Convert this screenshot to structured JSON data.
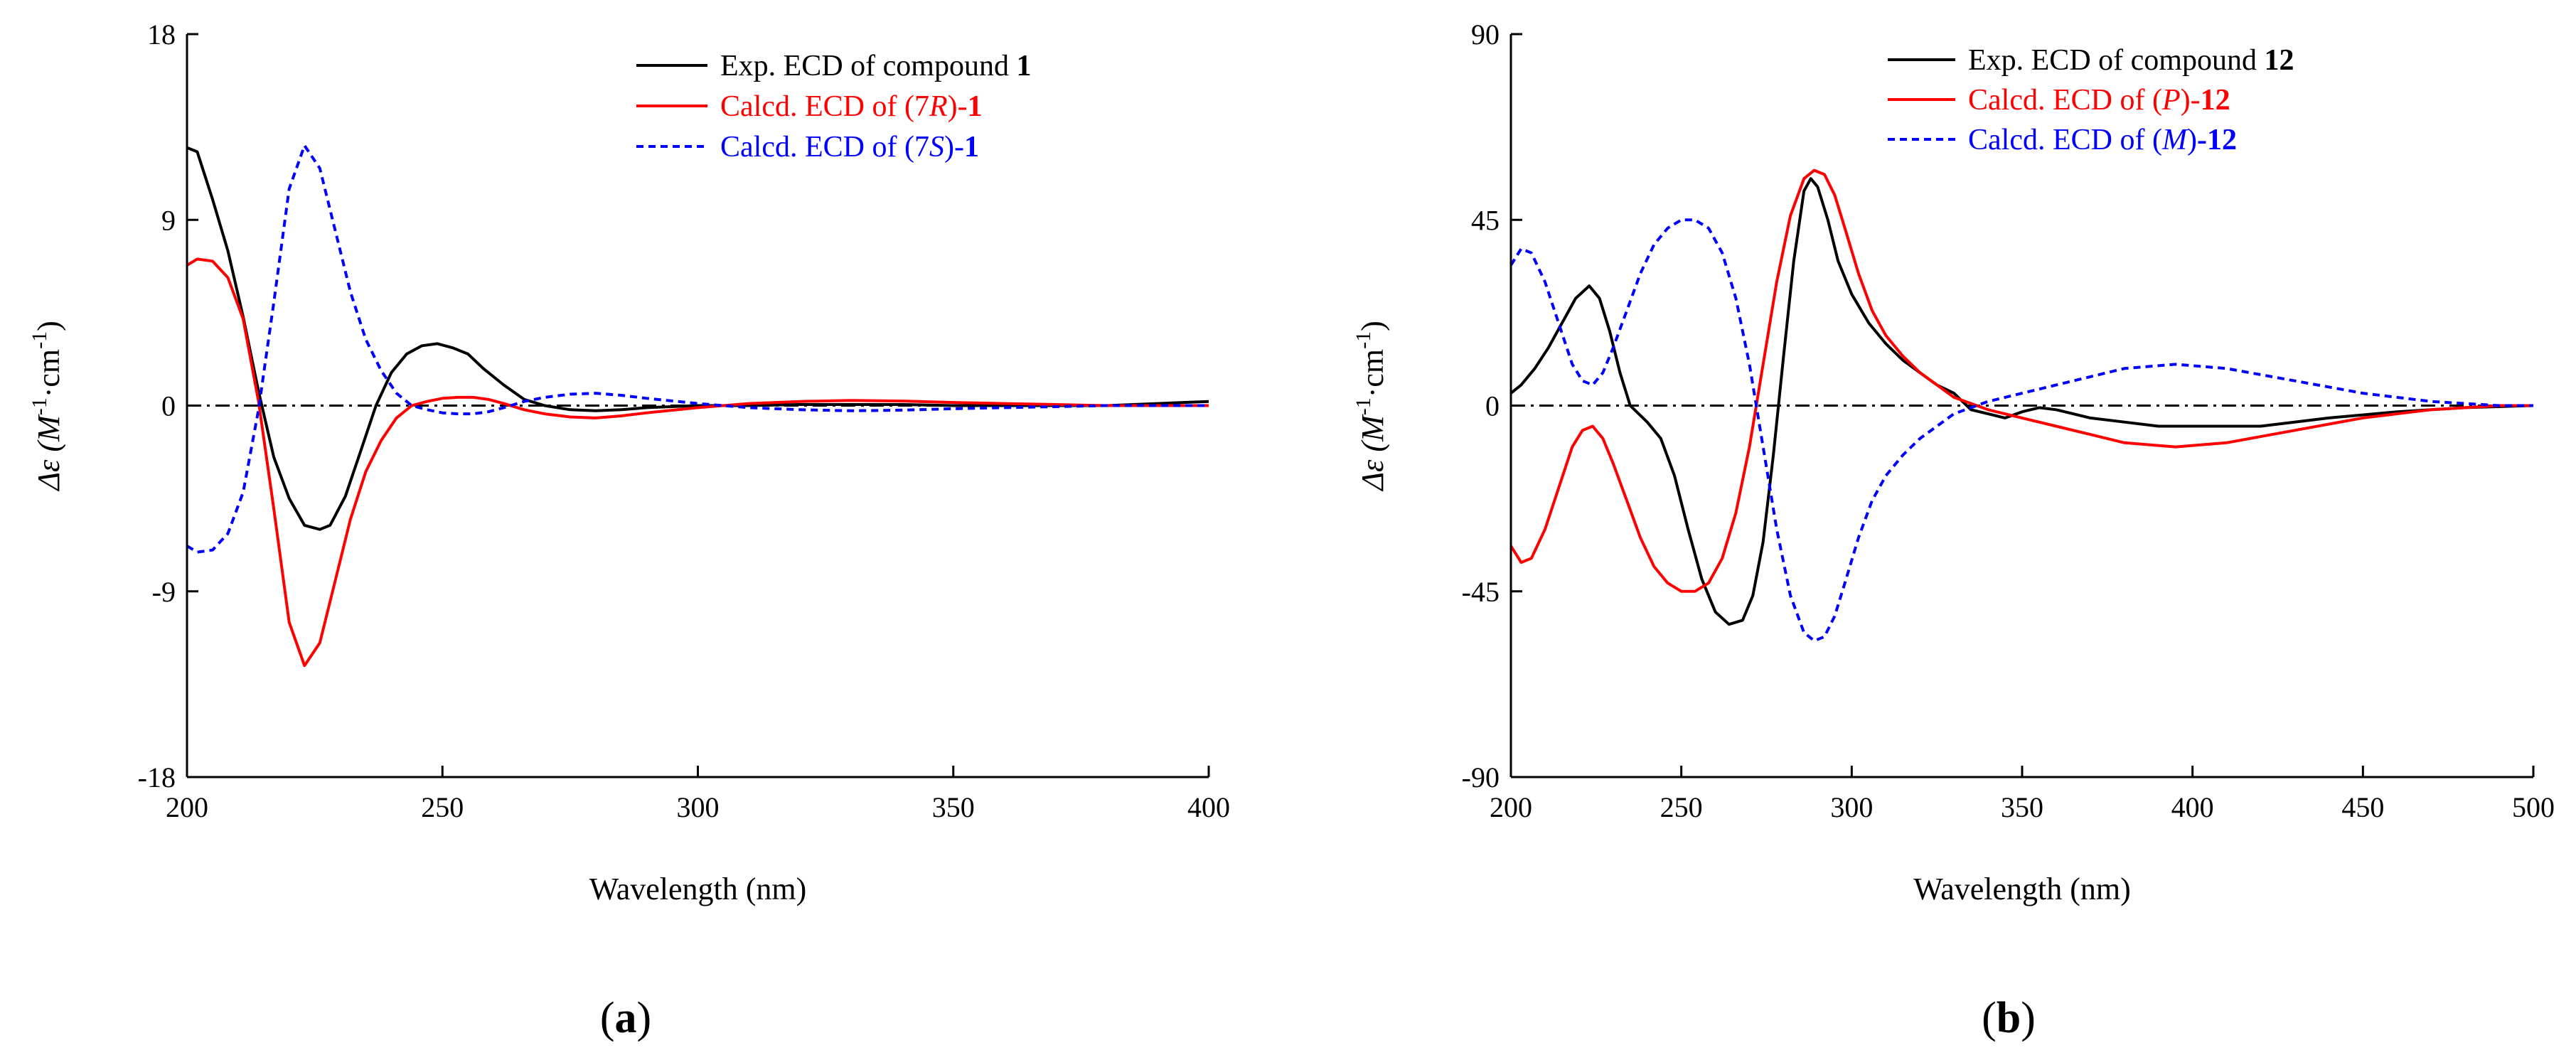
{
  "chart_data": [
    {
      "type": "line",
      "panel_label": "(a)",
      "xlabel": "Wavelength (nm)",
      "ylabel_prefix": "Δε (M",
      "ylabel_sup1": "-1",
      "ylabel_mid": "·cm",
      "ylabel_sup2": "-1",
      "ylabel_suffix": ")",
      "xlim": [
        200,
        400
      ],
      "ylim": [
        -18,
        18
      ],
      "xticks": [
        200,
        250,
        300,
        350,
        400
      ],
      "yticks": [
        18,
        9,
        0,
        -9,
        -18
      ],
      "xtick_labels": [
        "200",
        "250",
        "300",
        "350",
        "400"
      ],
      "ytick_labels": [
        "18",
        "9",
        "0",
        "-9",
        "-18"
      ],
      "baseline": 0,
      "legend_position": "top-right",
      "series": [
        {
          "name": "Exp. ECD of compound 1",
          "legend_text": "Exp. ECD of compound ",
          "legend_bold": "1",
          "color": "#000000",
          "style": "solid",
          "x": [
            200,
            202,
            205,
            208,
            211,
            214,
            217,
            220,
            223,
            226,
            228,
            231,
            234,
            237,
            240,
            243,
            246,
            249,
            252,
            255,
            258,
            262,
            266,
            270,
            275,
            280,
            285,
            290,
            300,
            310,
            320,
            330,
            340,
            350,
            360,
            370,
            380,
            390,
            400
          ],
          "y": [
            12.5,
            12.3,
            10,
            7.5,
            4.3,
            0.7,
            -2.5,
            -4.5,
            -5.8,
            -6.0,
            -5.8,
            -4.4,
            -2.2,
            0,
            1.6,
            2.5,
            2.9,
            3.0,
            2.8,
            2.5,
            1.8,
            1.0,
            0.3,
            0,
            -0.2,
            -0.25,
            -0.2,
            -0.1,
            0,
            0,
            0.05,
            0.05,
            0.05,
            0,
            0,
            0,
            0,
            0.1,
            0.2
          ]
        },
        {
          "name": "Calcd. ECD of (7R)-1",
          "legend_pre": "Calcd. ECD of (7",
          "legend_italic": "R",
          "legend_mid": ")-",
          "legend_bold": "1",
          "color": "#ff0000",
          "style": "solid",
          "x": [
            200,
            202,
            205,
            208,
            211,
            214,
            217,
            220,
            223,
            226,
            229,
            232,
            235,
            238,
            241,
            244,
            247,
            250,
            253,
            256,
            259,
            262,
            266,
            270,
            275,
            280,
            285,
            290,
            300,
            310,
            320,
            330,
            340,
            350,
            360,
            370,
            380,
            390,
            400
          ],
          "y": [
            6.8,
            7.1,
            7.0,
            6.2,
            4.2,
            0.2,
            -5.0,
            -10.5,
            -12.6,
            -11.5,
            -8.5,
            -5.5,
            -3.2,
            -1.7,
            -0.6,
            0,
            0.2,
            0.35,
            0.4,
            0.4,
            0.3,
            0.1,
            -0.2,
            -0.4,
            -0.55,
            -0.6,
            -0.5,
            -0.35,
            -0.1,
            0.1,
            0.2,
            0.25,
            0.22,
            0.15,
            0.1,
            0.05,
            0,
            0,
            0
          ]
        },
        {
          "name": "Calcd. ECD of (7S)-1",
          "legend_pre": "Calcd. ECD of (7",
          "legend_italic": "S",
          "legend_mid": ")-",
          "legend_bold": "1",
          "color": "#0000ff",
          "style": "dashed",
          "x": [
            200,
            202,
            205,
            208,
            211,
            214,
            217,
            220,
            223,
            226,
            229,
            232,
            235,
            238,
            241,
            244,
            247,
            250,
            253,
            256,
            259,
            262,
            266,
            270,
            275,
            280,
            285,
            290,
            300,
            310,
            320,
            330,
            340,
            350,
            360,
            370,
            380,
            390,
            400
          ],
          "y": [
            -6.8,
            -7.1,
            -7.0,
            -6.2,
            -4.2,
            -0.2,
            5.0,
            10.5,
            12.6,
            11.5,
            8.5,
            5.5,
            3.2,
            1.7,
            0.6,
            0,
            -0.2,
            -0.35,
            -0.4,
            -0.4,
            -0.3,
            -0.1,
            0.2,
            0.4,
            0.55,
            0.6,
            0.5,
            0.35,
            0.1,
            -0.1,
            -0.2,
            -0.25,
            -0.22,
            -0.15,
            -0.1,
            -0.05,
            0,
            0,
            0
          ]
        }
      ]
    },
    {
      "type": "line",
      "panel_label": "(b)",
      "xlabel": "Wavelength (nm)",
      "ylabel_prefix": "Δε (M",
      "ylabel_sup1": "-1",
      "ylabel_mid": "·cm",
      "ylabel_sup2": "-1",
      "ylabel_suffix": ")",
      "xlim": [
        200,
        500
      ],
      "ylim": [
        -90,
        90
      ],
      "xticks": [
        200,
        250,
        300,
        350,
        400,
        450,
        500
      ],
      "yticks": [
        90,
        45,
        0,
        -45,
        -90
      ],
      "xtick_labels": [
        "200",
        "250",
        "300",
        "350",
        "400",
        "450",
        "500"
      ],
      "ytick_labels": [
        "90",
        "45",
        "0",
        "-45",
        "-90"
      ],
      "baseline": 0,
      "legend_position": "top-right",
      "series": [
        {
          "name": "Exp. ECD of compound 12",
          "legend_text": "Exp. ECD of compound ",
          "legend_bold": "12",
          "color": "#000000",
          "style": "solid",
          "x": [
            200,
            203,
            207,
            211,
            215,
            219,
            223,
            226,
            229,
            232,
            235,
            240,
            244,
            248,
            252,
            256,
            260,
            264,
            268,
            271,
            274,
            277,
            280,
            283,
            286,
            288,
            290,
            293,
            296,
            300,
            305,
            310,
            315,
            320,
            325,
            330,
            335,
            340,
            345,
            350,
            355,
            360,
            370,
            380,
            390,
            400,
            420,
            440,
            460,
            480,
            500
          ],
          "y": [
            3,
            5,
            9,
            14,
            20,
            26,
            29,
            26,
            18,
            8,
            0,
            -4,
            -8,
            -17,
            -30,
            -42,
            -50,
            -53,
            -52,
            -46,
            -33,
            -12,
            12,
            35,
            52,
            55,
            53,
            45,
            35,
            27,
            20,
            15,
            11,
            8,
            5,
            3,
            -1,
            -2,
            -3,
            -1.5,
            -0.5,
            -1,
            -3,
            -4,
            -5,
            -5,
            -5,
            -3,
            -1.5,
            -0.5,
            0
          ]
        },
        {
          "name": "Calcd. ECD of (P)-12",
          "legend_pre": "Calcd. ECD of (",
          "legend_italic": "P",
          "legend_mid": ")-",
          "legend_bold": "12",
          "color": "#ff0000",
          "style": "solid",
          "x": [
            200,
            203,
            206,
            210,
            214,
            218,
            221,
            224,
            227,
            230,
            234,
            238,
            242,
            246,
            250,
            254,
            258,
            262,
            266,
            270,
            274,
            278,
            282,
            286,
            289,
            292,
            295,
            298,
            302,
            306,
            310,
            315,
            320,
            325,
            330,
            340,
            350,
            360,
            370,
            380,
            395,
            410,
            430,
            450,
            470,
            490,
            500
          ],
          "y": [
            -34,
            -38,
            -37,
            -30,
            -20,
            -10,
            -6,
            -5,
            -8,
            -14,
            -23,
            -32,
            -39,
            -43,
            -45,
            -45,
            -43,
            -37,
            -26,
            -10,
            10,
            30,
            46,
            55,
            57,
            56,
            51,
            43,
            32,
            23,
            17,
            12,
            8,
            5,
            2,
            -1,
            -3,
            -5,
            -7,
            -9,
            -10,
            -9,
            -6,
            -3,
            -1,
            0,
            0
          ]
        },
        {
          "name": "Calcd. ECD of (M)-12",
          "legend_pre": "Calcd. ECD of (",
          "legend_italic": "M",
          "legend_mid": ")",
          "legend_bold": "-12",
          "color": "#0000ff",
          "style": "dashed",
          "x": [
            200,
            203,
            206,
            210,
            214,
            218,
            221,
            224,
            227,
            230,
            234,
            238,
            242,
            246,
            250,
            254,
            258,
            262,
            266,
            270,
            274,
            278,
            282,
            286,
            289,
            292,
            295,
            298,
            302,
            306,
            310,
            315,
            320,
            325,
            330,
            340,
            350,
            360,
            370,
            380,
            395,
            410,
            430,
            450,
            470,
            490,
            500
          ],
          "y": [
            34,
            38,
            37,
            30,
            20,
            10,
            6,
            5,
            8,
            14,
            23,
            32,
            39,
            43,
            45,
            45,
            43,
            37,
            26,
            10,
            -10,
            -30,
            -46,
            -55,
            -57,
            -56,
            -51,
            -43,
            -32,
            -23,
            -17,
            -12,
            -8,
            -5,
            -2,
            1,
            3,
            5,
            7,
            9,
            10,
            9,
            6,
            3,
            1,
            0,
            0
          ]
        }
      ]
    }
  ]
}
